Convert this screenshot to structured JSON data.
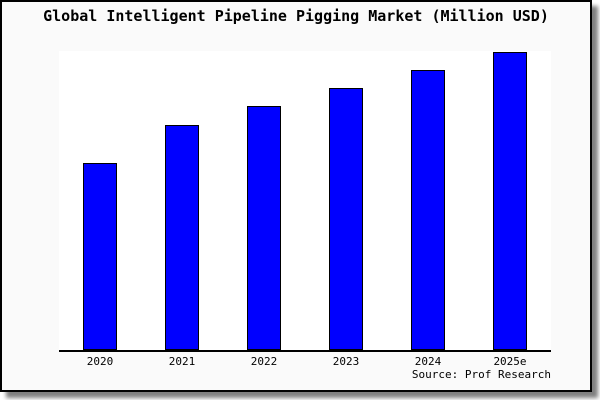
{
  "frame": {
    "background": "#fafafa",
    "border_color": "#000000",
    "shadow_color": "rgba(0,0,0,0.5)"
  },
  "chart_data": {
    "type": "bar",
    "title": "Global Intelligent Pipeline Pigging Market (Million USD)",
    "categories": [
      "2020",
      "2021",
      "2022",
      "2023",
      "2024",
      "2025e"
    ],
    "values": [
      188,
      226,
      245,
      263,
      281,
      299
    ],
    "ylim": [
      0,
      300
    ],
    "xlabel": "",
    "ylabel": "",
    "grid": false,
    "legend": false,
    "y_axis_labels_shown": false,
    "value_scale_note": "no y-axis ticks shown; values estimated in relative units from bar heights",
    "bar_color": "#0000ff",
    "bar_border_color": "#000000",
    "plot_background": "#ffffff",
    "axis_line_color": "#000000",
    "source": "Source: Prof Research"
  }
}
